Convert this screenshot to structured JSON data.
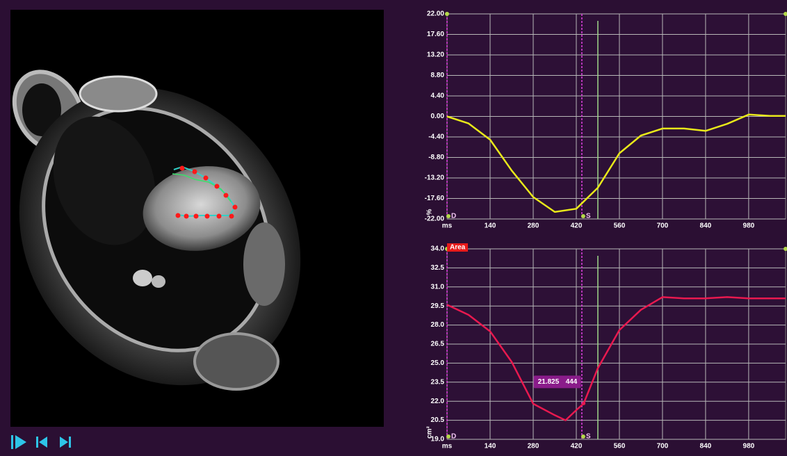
{
  "chart_data": [
    {
      "type": "line",
      "ylabel": "%",
      "xlabel": "ms",
      "color": "#e8e81a",
      "x": [
        0,
        70,
        140,
        210,
        280,
        350,
        420,
        490,
        560,
        630,
        700,
        770,
        840,
        910,
        980,
        1050,
        1100
      ],
      "values": [
        0,
        -1.5,
        -5,
        -11.6,
        -17.3,
        -20.5,
        -19.8,
        -15.3,
        -7.9,
        -4.1,
        -2.6,
        -2.6,
        -3.1,
        -1.6,
        0.4,
        0.1,
        0.1
      ],
      "xlim": [
        0,
        1100
      ],
      "xticks": [
        140,
        280,
        420,
        560,
        700,
        840,
        980
      ],
      "ylim": [
        -22,
        22
      ],
      "yticks": [
        {
          "value": 22,
          "label": "22.00"
        },
        {
          "value": 17.6,
          "label": "17.60"
        },
        {
          "value": 13.2,
          "label": "13.20"
        },
        {
          "value": 8.8,
          "label": "8.80"
        },
        {
          "value": 4.4,
          "label": "4.40"
        },
        {
          "value": 0,
          "label": "0.00"
        },
        {
          "value": -4.4,
          "label": "-4.40"
        },
        {
          "value": -8.8,
          "label": "-8.80"
        },
        {
          "value": -13.2,
          "label": "-13.20"
        },
        {
          "value": -17.6,
          "label": "-17.60"
        },
        {
          "value": -22,
          "label": "-22.00"
        }
      ],
      "grid": true,
      "markers": [
        {
          "label": "D",
          "x": 0
        },
        {
          "label": "S",
          "x": 438
        }
      ],
      "cursor": 490
    },
    {
      "type": "line",
      "title": "Area",
      "ylabel": "cm²",
      "xlabel": "ms",
      "color": "#e8194f",
      "x": [
        0,
        70,
        140,
        210,
        280,
        350,
        385,
        420,
        444,
        490,
        560,
        630,
        700,
        770,
        840,
        910,
        980,
        1100
      ],
      "values": [
        29.6,
        28.8,
        27.5,
        25.1,
        21.8,
        20.9,
        20.5,
        21.3,
        21.825,
        24.6,
        27.6,
        29.2,
        30.2,
        30.1,
        30.1,
        30.2,
        30.1,
        30.1
      ],
      "xlim": [
        0,
        1100
      ],
      "xticks": [
        140,
        280,
        420,
        560,
        700,
        840,
        980
      ],
      "ylim": [
        19,
        34
      ],
      "yticks": [
        {
          "value": 34,
          "label": "34.0"
        },
        {
          "value": 32.5,
          "label": "32.5"
        },
        {
          "value": 31,
          "label": "31.0"
        },
        {
          "value": 29.5,
          "label": "29.5"
        },
        {
          "value": 28,
          "label": "28.0"
        },
        {
          "value": 26.5,
          "label": "26.5"
        },
        {
          "value": 25,
          "label": "25.0"
        },
        {
          "value": 23.5,
          "label": "23.5"
        },
        {
          "value": 22,
          "label": "22.0"
        },
        {
          "value": 20.5,
          "label": "20.5"
        },
        {
          "value": 19,
          "label": "19.0"
        }
      ],
      "grid": true,
      "markers": [
        {
          "label": "D",
          "x": 0
        },
        {
          "label": "S",
          "x": 438
        }
      ],
      "cursor": 490,
      "tooltip": {
        "x": 444,
        "y": 21.825
      }
    }
  ]
}
